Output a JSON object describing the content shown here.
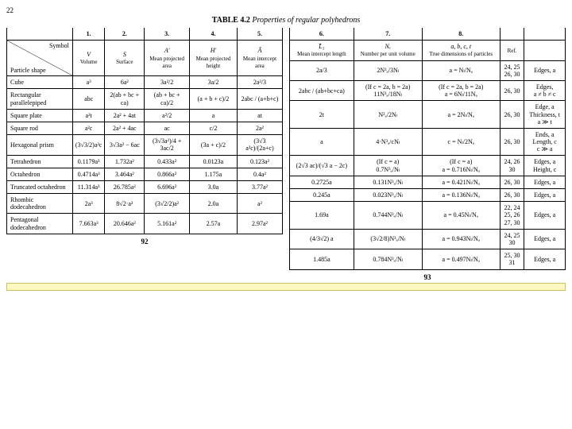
{
  "top_marker": "22",
  "caption_label": "TABLE 4.2",
  "caption_title": "Properties of regular polyhedrons",
  "left": {
    "nums": [
      "1.",
      "2.",
      "3.",
      "4.",
      "5."
    ],
    "corner_top": "Symbol",
    "corner_bottom": "Particle shape",
    "headers": [
      {
        "sym": "V",
        "txt": "Volume"
      },
      {
        "sym": "S",
        "txt": "Surface"
      },
      {
        "sym": "A′",
        "txt": "Mean projected area"
      },
      {
        "sym": "H′",
        "txt": "Mean projected height"
      },
      {
        "sym": "Ā",
        "txt": "Mean intercept area"
      }
    ],
    "rows": [
      {
        "label": "Cube",
        "c": [
          "a³",
          "6a²",
          "3a²/2",
          "3a/2",
          "2a²/3"
        ]
      },
      {
        "label": "Rectangular parallelepiped",
        "c": [
          "abc",
          "2(ab + bc + ca)",
          "(ab + bc + ca)/2",
          "(a + b + c)/2",
          "2abc / (a+b+c)"
        ]
      },
      {
        "label": "Square plate",
        "c": [
          "a²t",
          "2a² + 4at",
          "a²/2",
          "a",
          "at"
        ]
      },
      {
        "label": "Square rod",
        "c": [
          "a²c",
          "2a² + 4ac",
          "ac",
          "c/2",
          "2a²"
        ]
      },
      {
        "label": "Hexagonal prism",
        "c": [
          "(3√3/2)a²c",
          "3√3a² − 6ac",
          "(3√3a²)/4 + 3ac/2",
          "(3a + c)/2",
          "(3√3 a²c)/(2a+c)"
        ]
      },
      {
        "label": "Tetrahedron",
        "c": [
          "0.1179a³",
          "1.732a²",
          "0.433a²",
          "0.0123a",
          "0.123a²"
        ]
      },
      {
        "label": "Octahedron",
        "c": [
          "0.4714a³",
          "3.464a²",
          "0.866a²",
          "1.175a",
          "0.4a²"
        ]
      },
      {
        "label": "Truncated octahedron",
        "c": [
          "11.314a³",
          "26.785a²",
          "6.696a²",
          "3.0a",
          "3.77a²"
        ]
      },
      {
        "label": "Rhombic dodecahedron",
        "c": [
          "2a³",
          "8√2·a²",
          "(3√2/2)a²",
          "2.0a",
          "a²"
        ]
      },
      {
        "label": "Pentagonal dodecahedron",
        "c": [
          "7.663a³",
          "20.646a²",
          "5.161a²",
          "2.57a",
          "2.97a²"
        ]
      }
    ],
    "page": "92"
  },
  "right": {
    "nums": [
      "6.",
      "7.",
      "8.",
      "",
      ""
    ],
    "headers": [
      {
        "sym": "L̄₃",
        "txt": "Mean intercept length"
      },
      {
        "sym": "Nᵥ",
        "txt": "Number per unit volume"
      },
      {
        "sym": "a, b, c, t",
        "txt": "True dimensions of particles"
      },
      {
        "sym": "",
        "txt": "Ref."
      },
      {
        "sym": "",
        "txt": ""
      }
    ],
    "rows": [
      {
        "c": [
          "2a/3",
          "2N³ₐ/3Nₗ",
          "a = Nₗ/Nₐ",
          "24, 25\n26, 30",
          "Edges, a"
        ]
      },
      {
        "c": [
          "2abc / (ab+bc+ca)",
          "(If c = 2a, b = 2a)\n11N³ₐ/18Nₗ",
          "(If c = 2a, b = 2a)\na = 6Nₗ/11Nₐ",
          "26, 30",
          "Edges,\na ≠ b ≠ c"
        ]
      },
      {
        "c": [
          "2t",
          "N²ₐ/2Nₗ",
          "a = 2Nₗ/Nₐ",
          "26, 30",
          "Edge, a\nThickness, t\na ≫ t"
        ]
      },
      {
        "c": [
          "a",
          "4·N³ₐ/cNₗ",
          "c = Nₗ/2Nₐ",
          "26, 30",
          "Ends, a\nLength, c\nc ≫ a"
        ]
      },
      {
        "c": [
          "(2√3 ac)/(√3 a − 2c)",
          "(If c = a)\n0.7N³ₐ/Nₗ",
          "(If c = a)\na = 0.716Nₗ/Nₐ",
          "24, 26\n30",
          "Edges, a\nHeight, c"
        ]
      },
      {
        "c": [
          "0.2725a",
          "0.131N³ₐ/Nₗ",
          "a = 0.421Nₗ/Nₐ",
          "26, 30",
          "Edges, a"
        ]
      },
      {
        "c": [
          "0.245a",
          "0.023N³ₐ/Nₗ",
          "a = 0.136Nₗ/Nₐ",
          "26, 30",
          "Edges, a"
        ]
      },
      {
        "c": [
          "1.69a",
          "0.744N³ₐ/Nₗ",
          "a = 0.45Nₗ/Nₐ",
          "22, 24\n25, 26\n27, 30",
          "Edges, a"
        ]
      },
      {
        "c": [
          "(4/3√2) a",
          "(3√2/8)N³ₐ/Nₗ",
          "a = 0.943Nₗ/Nₐ",
          "24, 25\n30",
          "Edges, a"
        ]
      },
      {
        "c": [
          "1.485a",
          "0.784N³ₐ/Nₗ",
          "a = 0.497Nₗ/Nₐ",
          "25, 30\n31",
          "Edges, a"
        ]
      }
    ],
    "page": "93"
  }
}
